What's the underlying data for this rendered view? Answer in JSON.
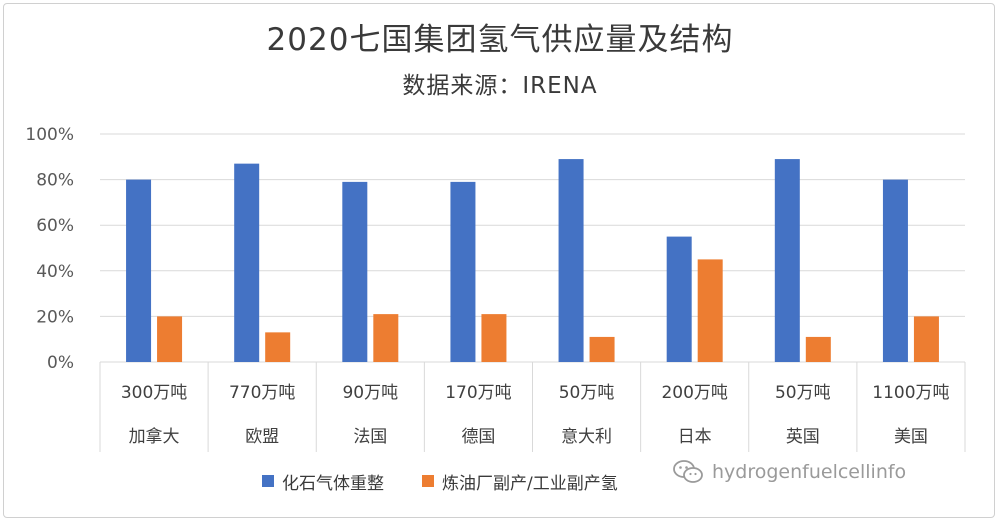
{
  "chart_data": {
    "type": "bar",
    "title": "2020七国集团氢气供应量及结构",
    "subtitle": "数据来源：IRENA",
    "categories": [
      "加拿大",
      "欧盟",
      "法国",
      "德国",
      "意大利",
      "日本",
      "英国",
      "美国"
    ],
    "supply_labels": [
      "300万吨",
      "770万吨",
      "90万吨",
      "170万吨",
      "50万吨",
      "200万吨",
      "50万吨",
      "1100万吨"
    ],
    "series": [
      {
        "name": "化石气体重整",
        "color": "#4472C4",
        "values": [
          80,
          87,
          79,
          79,
          89,
          55,
          89,
          80
        ]
      },
      {
        "name": "炼油厂副产/工业副产氢",
        "color": "#ED7D31",
        "values": [
          20,
          13,
          21,
          21,
          11,
          45,
          11,
          20
        ]
      }
    ],
    "ylim": [
      0,
      100
    ],
    "yticks": [
      "0%",
      "20%",
      "40%",
      "60%",
      "80%",
      "100%"
    ],
    "grid": true,
    "legend_position": "bottom"
  },
  "watermark": {
    "text": "hydrogenfuelcellinfo",
    "icon": "wechat-logo-icon"
  }
}
